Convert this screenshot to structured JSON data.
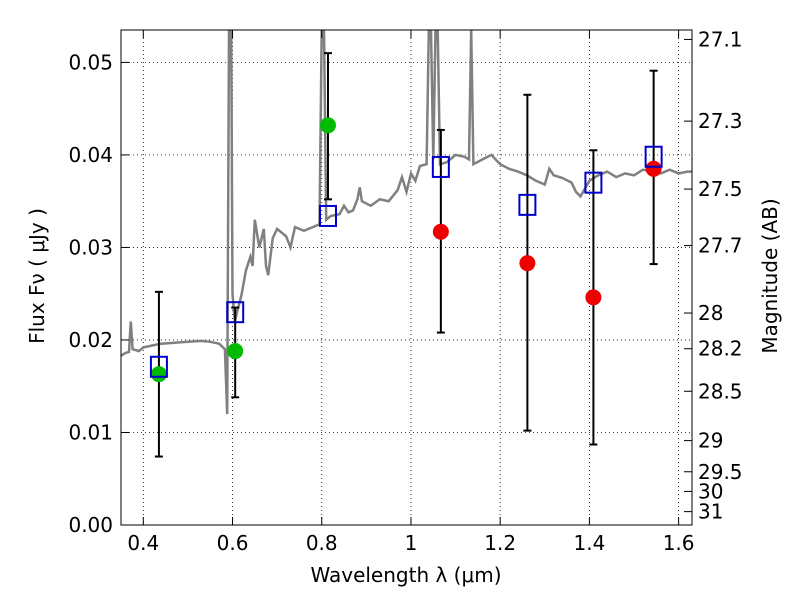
{
  "chart_data": {
    "type": "scatter",
    "title": "",
    "xlabel": "Wavelength  λ (μm)",
    "ylabel": "Flux  Fν  ( μJy )",
    "ylabel_right": "Magnitude (AB)",
    "xlim": [
      0.35,
      1.63
    ],
    "ylim": [
      0.0,
      0.0535
    ],
    "grid": true,
    "x_ticks": [
      0.4,
      0.6,
      0.8,
      1.0,
      1.2,
      1.4,
      1.6
    ],
    "x_tick_labels": [
      "0.4",
      "0.6",
      "0.8",
      "1",
      "1.2",
      "1.4",
      "1.6"
    ],
    "y_ticks": [
      0.0,
      0.01,
      0.02,
      0.03,
      0.04,
      0.05
    ],
    "y_tick_labels": [
      "0.00",
      "0.01",
      "0.02",
      "0.03",
      "0.04",
      "0.05"
    ],
    "right_ticks": [
      27.1,
      27.3,
      27.5,
      27.7,
      28,
      28.2,
      28.5,
      29,
      29.5,
      30,
      31
    ],
    "right_tick_labels": [
      "27.1",
      "27.3",
      "27.5",
      "27.7",
      "28",
      "28.2",
      "28.5",
      "29",
      "29.5",
      "30",
      "31"
    ],
    "series": [
      {
        "marker": "circle",
        "color": "#00bb00",
        "points": [
          {
            "x": 0.435,
            "y": 0.0163
          },
          {
            "x": 0.606,
            "y": 0.0188
          },
          {
            "x": 0.814,
            "y": 0.0432
          }
        ]
      },
      {
        "marker": "circle",
        "color": "#ee0000",
        "points": [
          {
            "x": 1.067,
            "y": 0.0317
          },
          {
            "x": 1.261,
            "y": 0.0283
          },
          {
            "x": 1.409,
            "y": 0.0246
          },
          {
            "x": 1.544,
            "y": 0.0385
          }
        ]
      },
      {
        "marker": "open-square",
        "color": "#0000cc",
        "points": [
          {
            "x": 0.435,
            "y": 0.0171
          },
          {
            "x": 0.606,
            "y": 0.023
          },
          {
            "x": 0.814,
            "y": 0.0334
          },
          {
            "x": 1.067,
            "y": 0.0387
          },
          {
            "x": 1.261,
            "y": 0.0346
          },
          {
            "x": 1.409,
            "y": 0.037
          },
          {
            "x": 1.544,
            "y": 0.0398
          }
        ]
      },
      {
        "marker": "errorbar",
        "color": "#000000",
        "points": [
          {
            "x": 0.435,
            "low": 0.0074,
            "high": 0.0252
          },
          {
            "x": 0.606,
            "low": 0.0138,
            "high": 0.0235
          },
          {
            "x": 0.814,
            "low": 0.0352,
            "high": 0.051
          },
          {
            "x": 1.067,
            "low": 0.0208,
            "high": 0.0427
          },
          {
            "x": 1.261,
            "low": 0.0102,
            "high": 0.0465
          },
          {
            "x": 1.409,
            "low": 0.0087,
            "high": 0.0405
          },
          {
            "x": 1.544,
            "low": 0.0282,
            "high": 0.0491
          }
        ]
      },
      {
        "marker": "line",
        "color": "#808080",
        "points": [
          [
            0.35,
            0.0183
          ],
          [
            0.36,
            0.0186
          ],
          [
            0.368,
            0.0187
          ],
          [
            0.372,
            0.022
          ],
          [
            0.376,
            0.019
          ],
          [
            0.39,
            0.0188
          ],
          [
            0.4,
            0.0192
          ],
          [
            0.42,
            0.0194
          ],
          [
            0.44,
            0.0196
          ],
          [
            0.47,
            0.0197
          ],
          [
            0.5,
            0.0198
          ],
          [
            0.53,
            0.0199
          ],
          [
            0.55,
            0.0198
          ],
          [
            0.57,
            0.0196
          ],
          [
            0.583,
            0.019
          ],
          [
            0.588,
            0.012
          ],
          [
            0.592,
            0.0535
          ],
          [
            0.597,
            0.0535
          ],
          [
            0.6,
            0.025
          ],
          [
            0.605,
            0.022
          ],
          [
            0.61,
            0.023
          ],
          [
            0.62,
            0.0248
          ],
          [
            0.63,
            0.0275
          ],
          [
            0.64,
            0.029
          ],
          [
            0.645,
            0.028
          ],
          [
            0.65,
            0.033
          ],
          [
            0.66,
            0.03
          ],
          [
            0.67,
            0.032
          ],
          [
            0.675,
            0.028
          ],
          [
            0.68,
            0.027
          ],
          [
            0.69,
            0.031
          ],
          [
            0.7,
            0.032
          ],
          [
            0.72,
            0.0312
          ],
          [
            0.73,
            0.03
          ],
          [
            0.74,
            0.0322
          ],
          [
            0.76,
            0.0318
          ],
          [
            0.78,
            0.0322
          ],
          [
            0.795,
            0.0325
          ],
          [
            0.8,
            0.0535
          ],
          [
            0.805,
            0.0535
          ],
          [
            0.81,
            0.033
          ],
          [
            0.82,
            0.0334
          ],
          [
            0.84,
            0.0336
          ],
          [
            0.85,
            0.0345
          ],
          [
            0.86,
            0.0338
          ],
          [
            0.87,
            0.034
          ],
          [
            0.88,
            0.0352
          ],
          [
            0.885,
            0.0365
          ],
          [
            0.89,
            0.035
          ],
          [
            0.91,
            0.0345
          ],
          [
            0.93,
            0.0352
          ],
          [
            0.95,
            0.035
          ],
          [
            0.97,
            0.0362
          ],
          [
            0.98,
            0.0376
          ],
          [
            0.99,
            0.036
          ],
          [
            1.0,
            0.038
          ],
          [
            1.01,
            0.0372
          ],
          [
            1.02,
            0.0388
          ],
          [
            1.035,
            0.039
          ],
          [
            1.04,
            0.0535
          ],
          [
            1.045,
            0.0535
          ],
          [
            1.05,
            0.0395
          ],
          [
            1.055,
            0.0535
          ],
          [
            1.06,
            0.0535
          ],
          [
            1.065,
            0.039
          ],
          [
            1.08,
            0.0392
          ],
          [
            1.09,
            0.0396
          ],
          [
            1.1,
            0.04
          ],
          [
            1.12,
            0.0398
          ],
          [
            1.13,
            0.0395
          ],
          [
            1.135,
            0.0535
          ],
          [
            1.14,
            0.039
          ],
          [
            1.16,
            0.0395
          ],
          [
            1.18,
            0.04
          ],
          [
            1.2,
            0.039
          ],
          [
            1.22,
            0.0385
          ],
          [
            1.24,
            0.0382
          ],
          [
            1.26,
            0.0378
          ],
          [
            1.28,
            0.0372
          ],
          [
            1.3,
            0.0368
          ],
          [
            1.31,
            0.0385
          ],
          [
            1.32,
            0.0378
          ],
          [
            1.34,
            0.0375
          ],
          [
            1.36,
            0.037
          ],
          [
            1.37,
            0.036
          ],
          [
            1.38,
            0.0355
          ],
          [
            1.4,
            0.0372
          ],
          [
            1.42,
            0.0378
          ],
          [
            1.44,
            0.0382
          ],
          [
            1.46,
            0.0376
          ],
          [
            1.48,
            0.038
          ],
          [
            1.5,
            0.0378
          ],
          [
            1.52,
            0.0384
          ],
          [
            1.54,
            0.0382
          ],
          [
            1.56,
            0.038
          ],
          [
            1.58,
            0.0384
          ],
          [
            1.6,
            0.038
          ],
          [
            1.62,
            0.0382
          ],
          [
            1.63,
            0.0382
          ]
        ]
      }
    ]
  }
}
